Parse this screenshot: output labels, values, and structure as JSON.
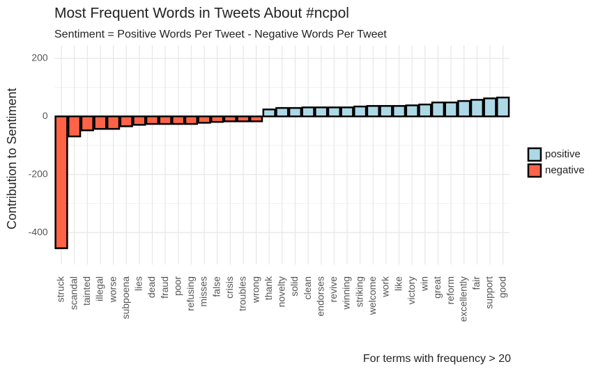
{
  "chart_data": {
    "type": "bar",
    "title": "Most Frequent Words in Tweets About #ncpol",
    "subtitle": "Sentiment = Positive Words Per Tweet - Negative Words Per Tweet",
    "y_label": "Contribution to Sentiment",
    "caption": "For terms with frequency > 20",
    "categories": [
      "struck",
      "scandal",
      "tainted",
      "illegal",
      "worse",
      "subpoena",
      "lies",
      "dead",
      "fraud",
      "poor",
      "refusing",
      "misses",
      "false",
      "crisis",
      "troubles",
      "wrong",
      "thank",
      "novelty",
      "solid",
      "clean",
      "endorses",
      "revive",
      "winning",
      "striking",
      "welcome",
      "work",
      "like",
      "victory",
      "win",
      "great",
      "reform",
      "excellently",
      "fair",
      "support",
      "good"
    ],
    "series": [
      {
        "name": "positive",
        "color": "#add8e6",
        "values": [
          null,
          null,
          null,
          null,
          null,
          null,
          null,
          null,
          null,
          null,
          null,
          null,
          null,
          null,
          null,
          null,
          24,
          29,
          29,
          31,
          31,
          31,
          31,
          34,
          36,
          36,
          36,
          38,
          41,
          48,
          48,
          53,
          57,
          62,
          65
        ]
      },
      {
        "name": "negative",
        "color": "#ff6347",
        "values": [
          -454,
          -69,
          -48,
          -43,
          -43,
          -34,
          -29,
          -26,
          -26,
          -26,
          -26,
          -22,
          -19,
          -17,
          -17,
          -17,
          null,
          null,
          null,
          null,
          null,
          null,
          null,
          null,
          null,
          null,
          null,
          null,
          null,
          null,
          null,
          null,
          null,
          null,
          null
        ]
      }
    ],
    "ylim": [
      -510,
      245
    ],
    "yticks": [
      -400,
      -200,
      0,
      200
    ],
    "grid": true,
    "legend": "right"
  }
}
